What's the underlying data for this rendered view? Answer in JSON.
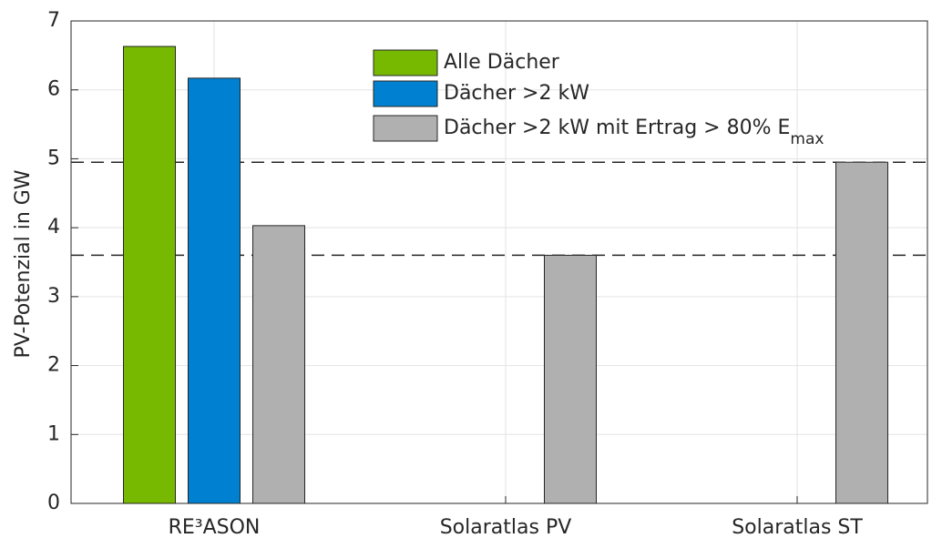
{
  "chart_data": {
    "type": "bar",
    "y_label": "PV-Potenzial in GW",
    "categories": [
      "RE³ASON",
      "Solaratlas PV",
      "Solaratlas ST"
    ],
    "series": [
      {
        "name": "Alle Dächer",
        "color": "#77b900",
        "values": [
          6.63,
          null,
          null
        ]
      },
      {
        "name": "Dächer >2 kW",
        "color": "#0080d0",
        "values": [
          6.17,
          null,
          null
        ]
      },
      {
        "name": "Dächer >2 kW mit Ertrag > 80% E",
        "name_subscript": "max",
        "color": "#b0b0b0",
        "values": [
          4.03,
          3.6,
          4.95
        ]
      }
    ],
    "reference_lines": [
      4.95,
      3.6
    ],
    "ylim": [
      0,
      7
    ],
    "yticks": [
      0,
      1,
      2,
      3,
      4,
      5,
      6,
      7
    ],
    "grid": true
  }
}
